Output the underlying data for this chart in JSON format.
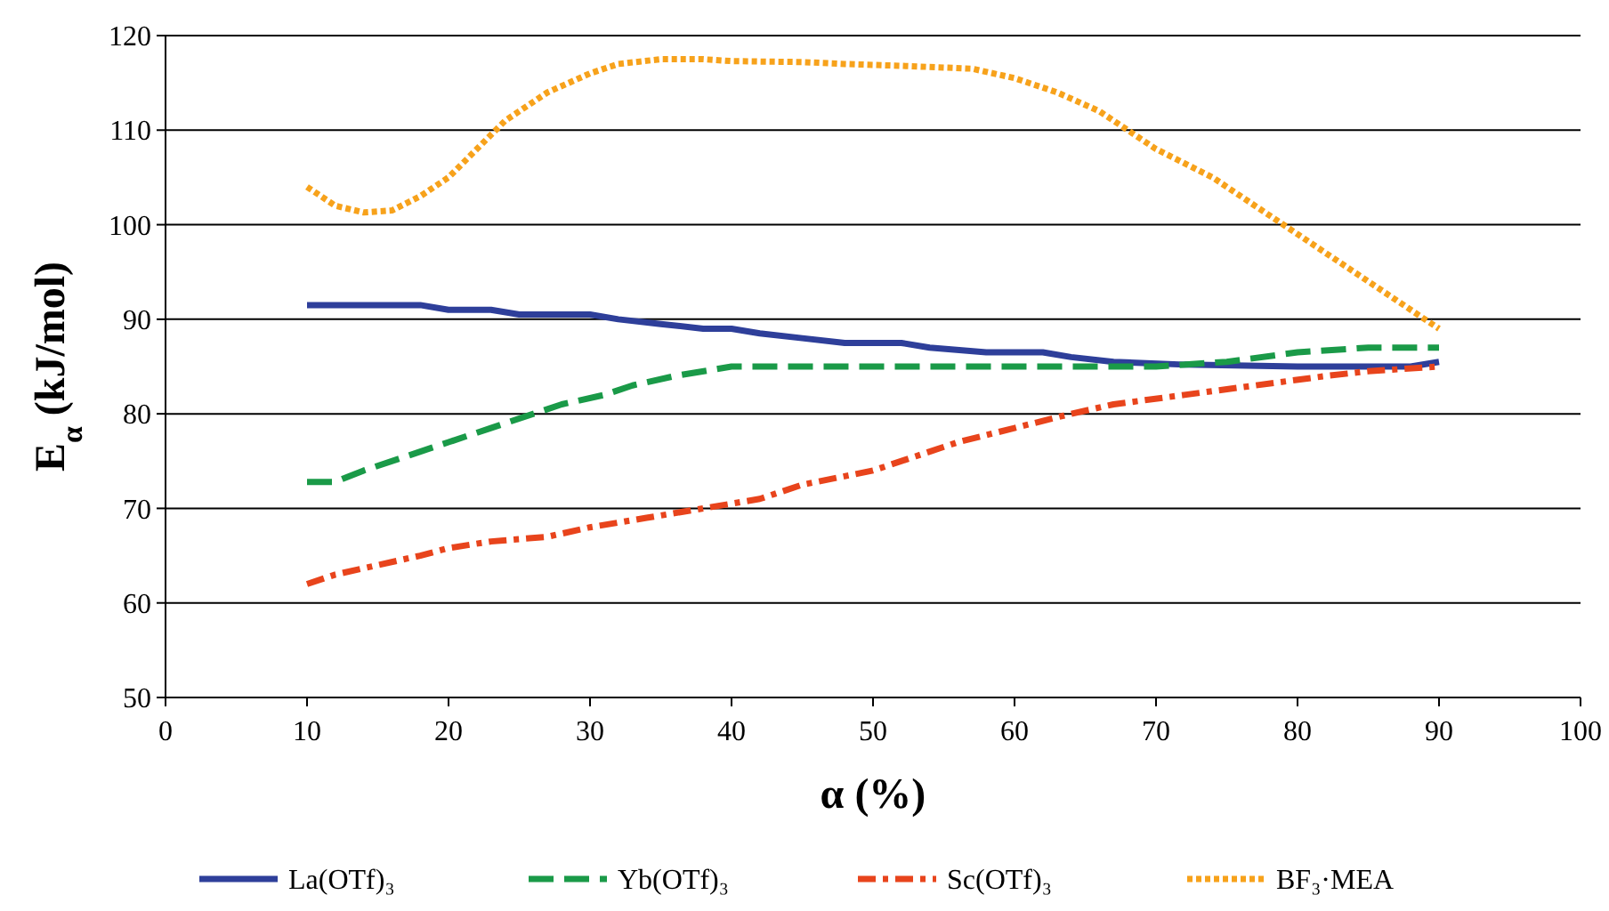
{
  "chart_data": {
    "type": "line",
    "xlabel": "α (%)",
    "ylabel": "E$_{α}$ (kJ/mol)",
    "xlim": [
      0,
      100
    ],
    "xticks": [
      0,
      10,
      20,
      30,
      40,
      50,
      60,
      70,
      80,
      90,
      100
    ],
    "ylim": [
      50,
      120
    ],
    "yticks": [
      50,
      60,
      70,
      80,
      90,
      100,
      110,
      120
    ],
    "grid": "y",
    "legend": "bottom",
    "marker": "none",
    "series": [
      {
        "name": "La(OTf)₃",
        "color": "#2e3f9a",
        "line_style": "solid",
        "x": [
          10,
          18,
          20,
          23,
          25,
          30,
          32,
          35,
          38,
          40,
          42,
          45,
          48,
          52,
          54,
          58,
          62,
          64,
          67,
          72,
          80,
          88,
          90
        ],
        "values": [
          91.5,
          91.5,
          91,
          91,
          90.5,
          90.5,
          90,
          89.5,
          89,
          89,
          88.5,
          88,
          87.5,
          87.5,
          87,
          86.5,
          86.5,
          86,
          85.5,
          85.2,
          85,
          85,
          85.5
        ]
      },
      {
        "name": "Yb(OTf)₃",
        "color": "#1a9a48",
        "line_style": "dashed",
        "x": [
          10,
          12,
          14,
          17,
          20,
          23,
          26,
          28,
          31,
          33,
          36,
          40,
          50,
          60,
          70,
          75,
          80,
          85,
          90
        ],
        "values": [
          72.8,
          72.8,
          74,
          75.5,
          77,
          78.5,
          80,
          81,
          82,
          83,
          84,
          85,
          85,
          85,
          85,
          85.5,
          86.5,
          87,
          87
        ]
      },
      {
        "name": "Sc(OTf)₃",
        "color": "#e8441c",
        "line_style": "dashdot",
        "x": [
          10,
          12,
          15,
          18,
          20,
          23,
          27,
          30,
          34,
          38,
          42,
          45,
          50,
          53,
          56,
          60,
          64,
          67,
          72,
          77,
          82,
          85,
          90
        ],
        "values": [
          62,
          63,
          64,
          65,
          65.8,
          66.5,
          67,
          68,
          69,
          70,
          71,
          72.5,
          74,
          75.5,
          77,
          78.5,
          80,
          81,
          82,
          83,
          84,
          84.5,
          85
        ]
      },
      {
        "name": "BF₃·MEA",
        "color": "#f7a21b",
        "line_style": "dotted",
        "x": [
          10,
          12,
          14,
          16,
          18,
          20,
          22,
          24,
          27,
          30,
          32,
          35,
          38,
          40,
          45,
          48,
          52,
          57,
          60,
          63,
          66,
          68,
          70,
          74,
          77,
          80,
          83,
          86,
          90
        ],
        "values": [
          104,
          102,
          101.3,
          101.5,
          103,
          105,
          108,
          111,
          114,
          116,
          117,
          117.5,
          117.5,
          117.3,
          117.2,
          117,
          116.8,
          116.5,
          115.5,
          114,
          112,
          110,
          108,
          105,
          102,
          99,
          96,
          93,
          89
        ]
      }
    ]
  }
}
